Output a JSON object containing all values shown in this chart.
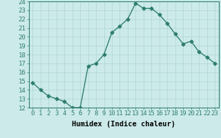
{
  "x": [
    0,
    1,
    2,
    3,
    4,
    5,
    6,
    7,
    8,
    9,
    10,
    11,
    12,
    13,
    14,
    15,
    16,
    17,
    18,
    19,
    20,
    21,
    22,
    23
  ],
  "y": [
    14.8,
    14.0,
    13.3,
    13.0,
    12.7,
    12.0,
    12.0,
    16.7,
    17.0,
    18.0,
    20.5,
    21.2,
    22.0,
    23.8,
    23.2,
    23.2,
    22.5,
    21.5,
    20.3,
    19.2,
    19.5,
    18.3,
    17.7,
    17.0
  ],
  "line_color": "#2e7d6e",
  "marker": "D",
  "markersize": 2.5,
  "linewidth": 1.0,
  "bg_color": "#cceaea",
  "grid_color": "#aed4d4",
  "xlabel": "Humidex (Indice chaleur)",
  "xlim": [
    -0.5,
    23.5
  ],
  "ylim": [
    12,
    24
  ],
  "yticks": [
    12,
    13,
    14,
    15,
    16,
    17,
    18,
    19,
    20,
    21,
    22,
    23,
    24
  ],
  "xticks": [
    0,
    1,
    2,
    3,
    4,
    5,
    6,
    7,
    8,
    9,
    10,
    11,
    12,
    13,
    14,
    15,
    16,
    17,
    18,
    19,
    20,
    21,
    22,
    23
  ],
  "xtick_labels": [
    "0",
    "1",
    "2",
    "3",
    "4",
    "5",
    "6",
    "7",
    "8",
    "9",
    "10",
    "11",
    "12",
    "13",
    "14",
    "15",
    "16",
    "17",
    "18",
    "19",
    "20",
    "21",
    "22",
    "23"
  ],
  "xlabel_fontsize": 7.5,
  "tick_fontsize": 6.5
}
